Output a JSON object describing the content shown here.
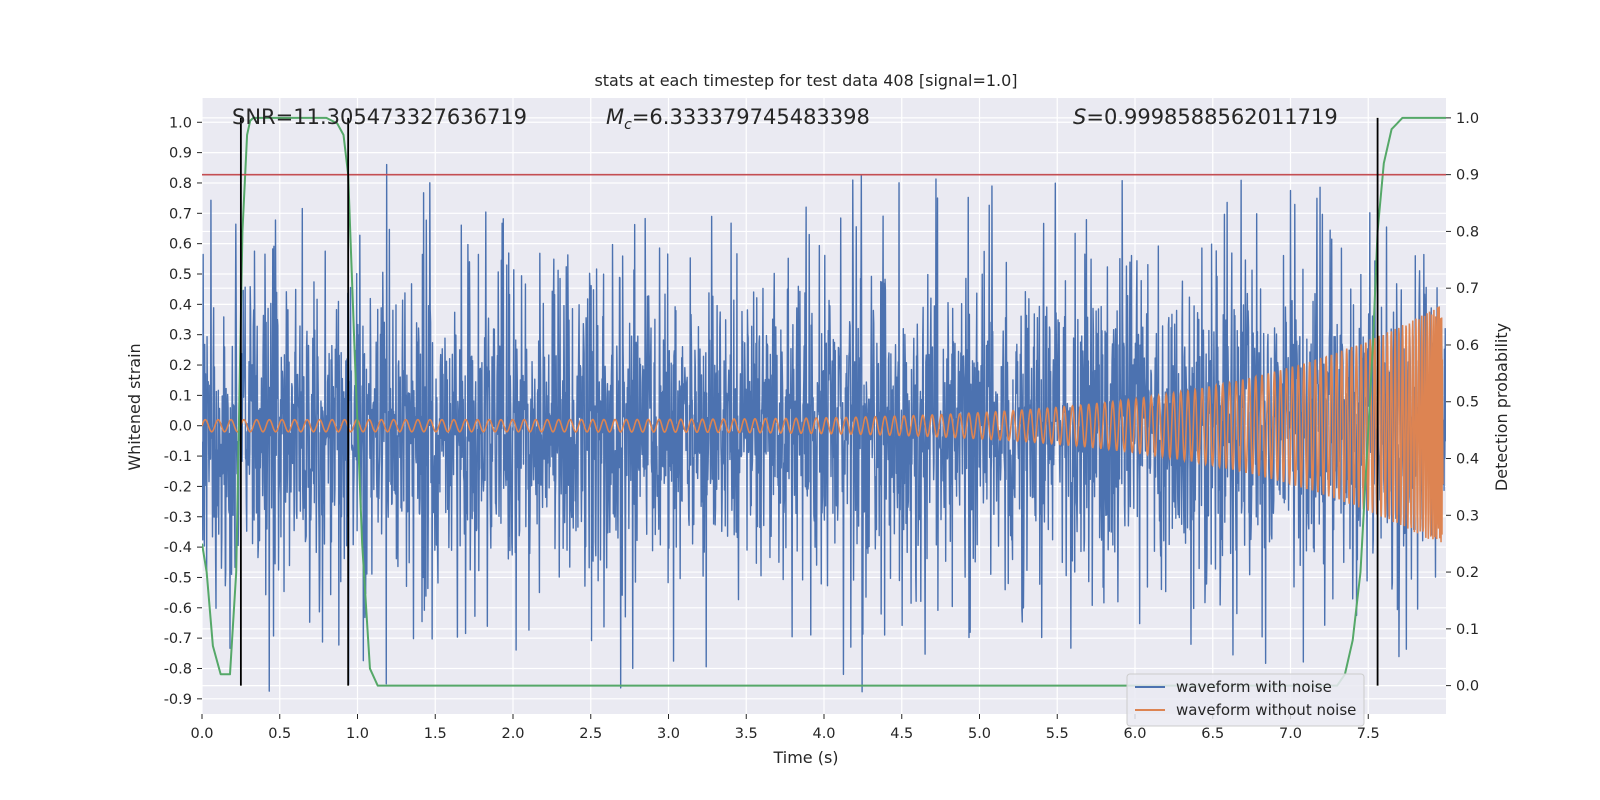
{
  "chart_data": {
    "type": "line",
    "title": "stats at each timestep for test data 408 [signal=1.0]",
    "xlabel": "Time (s)",
    "ylabel": "Whitened strain",
    "ylabel_right": "Detection probability",
    "xlim": [
      0.0,
      8.0
    ],
    "ylim": [
      -0.95,
      1.08
    ],
    "ylim_right": [
      -0.05,
      1.035
    ],
    "x_ticks": [
      "0.0",
      "0.5",
      "1.0",
      "1.5",
      "2.0",
      "2.5",
      "3.0",
      "3.5",
      "4.0",
      "4.5",
      "5.0",
      "5.5",
      "6.0",
      "6.5",
      "7.0",
      "7.5"
    ],
    "y_ticks": [
      "1.0",
      "0.9",
      "0.8",
      "0.7",
      "0.6",
      "0.5",
      "0.4",
      "0.3",
      "0.2",
      "0.1",
      "0.0",
      "-0.1",
      "-0.2",
      "-0.3",
      "-0.4",
      "-0.5",
      "-0.6",
      "-0.7",
      "-0.8",
      "-0.9"
    ],
    "y_ticks_right": [
      "1.0",
      "0.9",
      "0.8",
      "0.7",
      "0.6",
      "0.5",
      "0.4",
      "0.3",
      "0.2",
      "0.1",
      "0.0"
    ],
    "annotations": {
      "snr": "SNR=11.305473327636719",
      "mc_base": "M",
      "mc_sub": "c",
      "mc_value": "=6.333379745483398",
      "s_label": "S",
      "s_value": "=0.9998588562011719"
    },
    "threshold_right": 0.9,
    "vertical_markers_x": [
      0.25,
      0.94,
      7.56
    ],
    "series": [
      {
        "name": "waveform with noise",
        "color": "#4c72b0",
        "style": "noisy",
        "base_amplitude": 0.45,
        "typical_peaks_positive": [
          0.5,
          0.6,
          0.7,
          0.8,
          0.83
        ],
        "typical_peaks_negative": [
          -0.6,
          -0.7,
          -0.8,
          -0.88
        ]
      },
      {
        "name": "waveform without noise",
        "color": "#dd8452",
        "style": "chirp",
        "amplitude_start": 0.02,
        "amplitude_end": 0.4,
        "merger_time": 7.98
      },
      {
        "name": "",
        "color": "#55a868",
        "axis": "right",
        "x": [
          0.0,
          0.03,
          0.07,
          0.12,
          0.18,
          0.22,
          0.24,
          0.26,
          0.29,
          0.31,
          0.33,
          0.4,
          0.6,
          0.8,
          0.87,
          0.91,
          0.94,
          0.98,
          1.03,
          1.08,
          1.13,
          1.5,
          2.0,
          3.0,
          4.0,
          5.0,
          6.0,
          7.0,
          7.3,
          7.35,
          7.4,
          7.45,
          7.5,
          7.53,
          7.56,
          7.6,
          7.65,
          7.72,
          8.0
        ],
        "y": [
          0.25,
          0.2,
          0.07,
          0.02,
          0.02,
          0.2,
          0.5,
          0.8,
          0.97,
          0.995,
          1.0,
          1.0,
          1.0,
          1.0,
          0.99,
          0.97,
          0.9,
          0.6,
          0.25,
          0.03,
          0.0,
          0.0,
          0.0,
          0.0,
          0.0,
          0.0,
          0.0,
          0.0,
          0.0,
          0.02,
          0.08,
          0.2,
          0.45,
          0.6,
          0.8,
          0.92,
          0.98,
          1.0,
          1.0
        ]
      }
    ],
    "legend": {
      "placement": "lower-right",
      "entries": [
        "waveform with noise",
        "waveform without noise"
      ]
    },
    "colors": {
      "axes_bg": "#eaeaf2",
      "grid": "#ffffff",
      "threshold": "#c44e52",
      "marker": "#000000"
    },
    "grid": true
  }
}
